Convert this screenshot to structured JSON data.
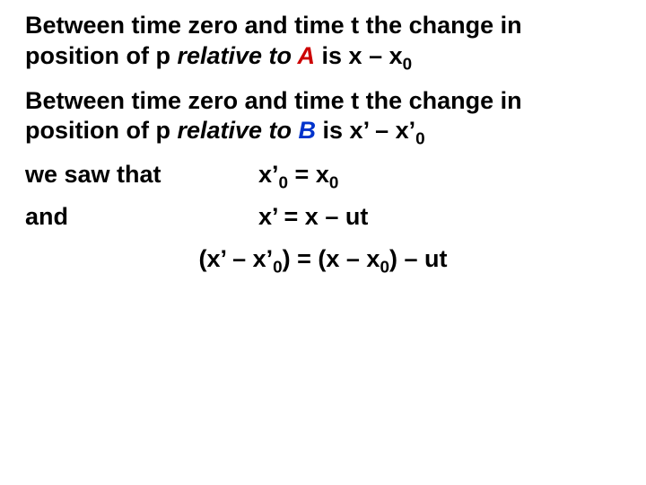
{
  "colors": {
    "text": "#000000",
    "A": "#cc0000",
    "B": "#0033cc",
    "background": "#ffffff"
  },
  "typography": {
    "font_family": "Arial",
    "font_size_pt": 20,
    "font_weight": "bold"
  },
  "p1": {
    "pre": "Between time zero and time t the change in position of p ",
    "relative_to": "relative to ",
    "A": "A",
    "post": " is  x – x",
    "sub": "0"
  },
  "p2": {
    "pre": "Between time zero and time t the change in position of p ",
    "relative_to": "relative to ",
    "B": "B",
    "post": " is  x’ – x’",
    "sub": "0"
  },
  "row1": {
    "label": "we saw that",
    "eq_pre": "x’",
    "eq_sub1": "0",
    "eq_mid": " = x",
    "eq_sub2": "0"
  },
  "row2": {
    "label": "and",
    "eq": "x’  = x – ut"
  },
  "final": {
    "lhs_pre": "(x’ – x’",
    "lhs_sub": "0",
    "mid": ") = (x – x",
    "rhs_sub": "0",
    "tail": ") – ut"
  }
}
